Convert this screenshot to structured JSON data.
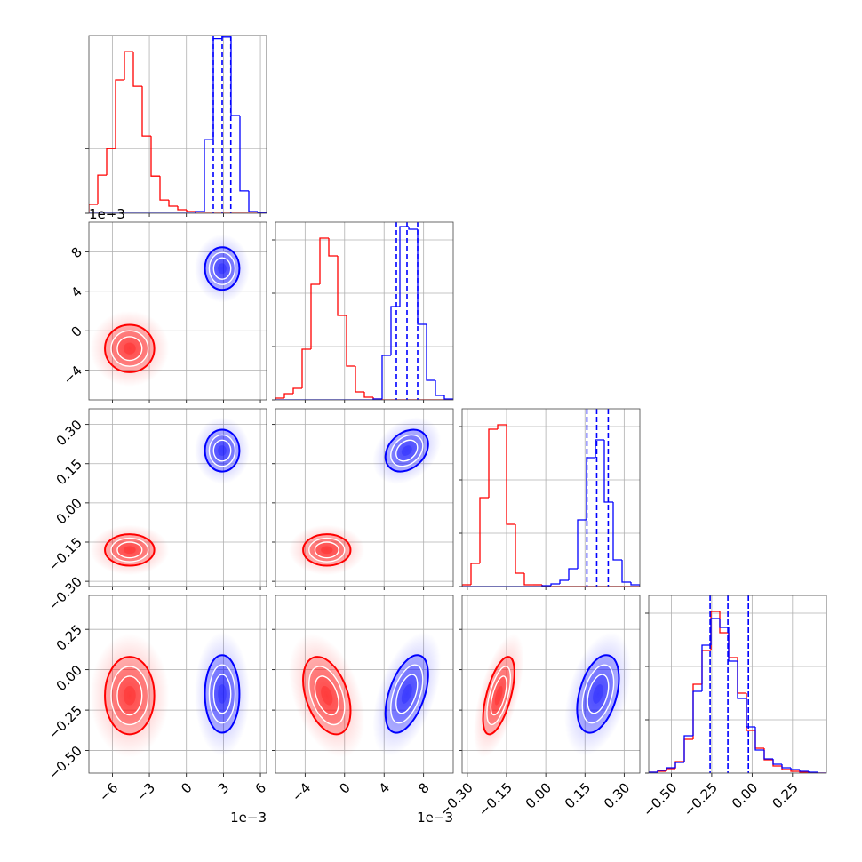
{
  "chart_data": {
    "type": "corner",
    "parameters": [
      {
        "lim": [
          -7.9,
          6.5
        ],
        "ticks": [
          {
            "value": -6,
            "label": "−6"
          },
          {
            "value": -3,
            "label": "−3"
          },
          0,
          3,
          6
        ],
        "offset_label": "1e−3",
        "bins": [
          -7.9,
          -7.18,
          -6.46,
          -5.74,
          -5.02,
          -4.3,
          -3.58,
          -2.86,
          -2.14,
          -1.42,
          -0.7,
          0.02,
          0.74,
          1.46,
          2.18,
          2.9,
          3.62,
          4.34,
          5.06,
          5.78,
          6.5
        ],
        "hist_ylim": [
          0,
          5500
        ],
        "hist_yticks": [
          0,
          2000,
          4000
        ]
      },
      {
        "lim": [
          -7,
          11
        ],
        "ticks": [
          {
            "value": -4,
            "label": "−4"
          },
          0,
          4,
          8
        ],
        "offset_label": "1e−3",
        "bins": [
          -7,
          -6.1,
          -5.2,
          -4.3,
          -3.4,
          -2.5,
          -1.6,
          -0.7,
          0.2,
          1.1,
          2,
          2.9,
          3.8,
          4.7,
          5.6,
          6.5,
          7.4,
          8.3,
          9.2,
          10.1,
          11
        ],
        "hist_ylim": [
          0,
          5000
        ],
        "hist_yticks": [
          0,
          1500,
          3000,
          4500
        ]
      },
      {
        "lim": [
          -0.32,
          0.36
        ],
        "ticks": [
          {
            "value": -0.3,
            "label": "−0.30"
          },
          {
            "value": -0.15,
            "label": "−0.15"
          },
          {
            "value": 0,
            "label": "0.00"
          },
          {
            "value": 0.15,
            "label": "0.15"
          },
          {
            "value": 0.3,
            "label": "0.30"
          }
        ],
        "bins": [
          -0.32,
          -0.286,
          -0.252,
          -0.218,
          -0.184,
          -0.15,
          -0.116,
          -0.082,
          -0.048,
          -0.014,
          0.02,
          0.054,
          0.088,
          0.122,
          0.156,
          0.19,
          0.224,
          0.258,
          0.292,
          0.326,
          0.36
        ],
        "hist_ylim": [
          0,
          5000
        ],
        "hist_yticks": [
          0,
          1500,
          3000,
          4500
        ]
      },
      {
        "lim": [
          -0.64,
          0.46
        ],
        "ticks": [
          {
            "value": -0.5,
            "label": "−0.50"
          },
          {
            "value": -0.25,
            "label": "−0.25"
          },
          {
            "value": 0,
            "label": "0.00"
          },
          {
            "value": 0.25,
            "label": "0.25"
          }
        ],
        "bins": [
          -0.64,
          -0.585,
          -0.53,
          -0.475,
          -0.42,
          -0.365,
          -0.31,
          -0.255,
          -0.2,
          -0.145,
          -0.09,
          -0.035,
          0.02,
          0.075,
          0.13,
          0.185,
          0.24,
          0.295,
          0.35,
          0.405,
          0.46
        ],
        "hist_ylim": [
          0,
          5000
        ],
        "hist_yticks": [
          0,
          1500,
          3000,
          4500
        ]
      }
    ],
    "levels": [
      0.5,
      1,
      1.5,
      2
    ],
    "grid": true,
    "series": [
      {
        "color": "#ff0000",
        "mean": [
          -4.6,
          -1.8,
          -0.18,
          -0.16
        ],
        "sd": [
          1.0,
          1.2,
          0.03,
          0.12
        ],
        "corr": [
          [
            1,
            0,
            0,
            0
          ],
          [
            0,
            1,
            0,
            -0.4
          ],
          [
            0,
            0,
            1,
            0.6
          ],
          [
            0,
            -0.4,
            0.6,
            1
          ]
        ],
        "hist": [
          [
            275,
            1180,
            2000,
            4125,
            5000,
            3930,
            2390,
            1150,
            410,
            220,
            110,
            55,
            0,
            0,
            0,
            0,
            0,
            0,
            0,
            0
          ],
          [
            50,
            175,
            325,
            1425,
            3250,
            4550,
            4050,
            2375,
            950,
            225,
            75,
            25,
            0,
            0,
            0,
            0,
            0,
            0,
            0,
            0
          ],
          [
            50,
            650,
            2500,
            4425,
            4550,
            1750,
            375,
            50,
            50,
            0,
            0,
            0,
            0,
            0,
            0,
            0,
            0,
            0,
            0,
            0
          ],
          [
            25,
            50,
            125,
            325,
            950,
            2500,
            3450,
            4550,
            3950,
            3250,
            2250,
            1200,
            700,
            375,
            200,
            100,
            50,
            25,
            0,
            0
          ]
        ]
      },
      {
        "color": "#0000ff",
        "mean": [
          2.9,
          6.3,
          0.2,
          -0.15
        ],
        "sd": [
          0.7,
          1.08,
          0.04,
          0.12
        ],
        "corr": [
          [
            1,
            0,
            0,
            0
          ],
          [
            0,
            1,
            0.3,
            0.5
          ],
          [
            0,
            0.3,
            1,
            0.4
          ],
          [
            0,
            0.5,
            0.4,
            1
          ]
        ],
        "quantiles": [
          [
            2.18,
            2.9,
            3.6
          ],
          [
            5.24,
            6.32,
            7.4
          ],
          [
            0.1575,
            0.195,
            0.239
          ],
          [
            -0.26,
            -0.15,
            -0.023
          ]
        ],
        "hist": [
          [
            0,
            0,
            0,
            0,
            0,
            0,
            0,
            0,
            0,
            0,
            0,
            0,
            55,
            2280,
            5400,
            5450,
            3025,
            690,
            55,
            25
          ],
          [
            0,
            0,
            0,
            0,
            0,
            0,
            0,
            0,
            0,
            0,
            0,
            25,
            1250,
            2625,
            4875,
            4800,
            2125,
            550,
            125,
            25
          ],
          [
            0,
            0,
            0,
            0,
            0,
            0,
            0,
            0,
            0,
            25,
            75,
            175,
            500,
            1875,
            3625,
            4125,
            2375,
            750,
            125,
            50
          ],
          [
            25,
            75,
            150,
            300,
            1050,
            2300,
            3600,
            4350,
            4100,
            3150,
            2100,
            1300,
            650,
            400,
            250,
            150,
            100,
            50,
            25,
            0
          ]
        ]
      }
    ]
  }
}
